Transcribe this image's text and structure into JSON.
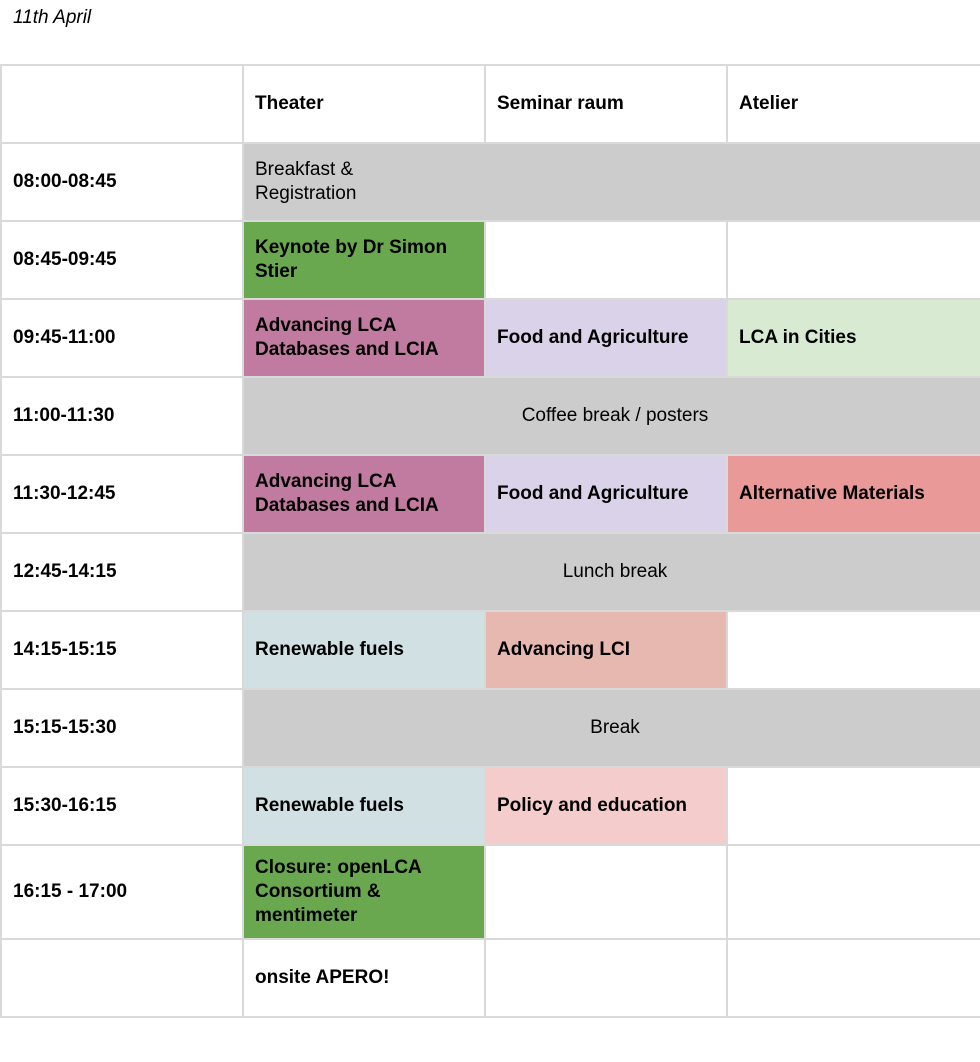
{
  "date": "11th April",
  "header": {
    "time": "",
    "rooms": [
      "Theater",
      "Seminar raum",
      "Atelier"
    ]
  },
  "rows": [
    {
      "time": "08:00-08:45",
      "cells": [
        "Breakfast & Registration"
      ]
    },
    {
      "time": "08:45-09:45",
      "cells": [
        "Keynote by Dr Simon Stier",
        "",
        ""
      ]
    },
    {
      "time": "09:45-11:00",
      "cells": [
        "Advancing LCA Databases and LCIA",
        "Food and Agriculture",
        "LCA in Cities"
      ]
    },
    {
      "time": "11:00-11:30",
      "cells": [
        "Coffee break / posters"
      ]
    },
    {
      "time": "11:30-12:45",
      "cells": [
        "Advancing LCA Databases and LCIA",
        "Food and Agriculture",
        "Alternative Materials"
      ]
    },
    {
      "time": "12:45-14:15",
      "cells": [
        "Lunch break"
      ]
    },
    {
      "time": "14:15-15:15",
      "cells": [
        "Renewable fuels",
        "Advancing LCI",
        ""
      ]
    },
    {
      "time": "15:15-15:30",
      "cells": [
        "Break"
      ]
    },
    {
      "time": "15:30-16:15",
      "cells": [
        "Renewable fuels",
        "Policy and education",
        ""
      ]
    },
    {
      "time": "16:15 - 17:00",
      "cells": [
        "Closure: openLCA Consortium & mentimeter",
        "",
        ""
      ]
    },
    {
      "time": "",
      "cells": [
        "onsite APERO!",
        "",
        ""
      ]
    }
  ],
  "colors": {
    "grey": "#cccccc",
    "green": "#6aa84f",
    "mauve": "#c27ba0",
    "lavender": "#d9d2e9",
    "mint": "#d9ead3",
    "ice": "#d0e0e3",
    "salmon": "#e6b8af",
    "red": "#ea9999",
    "pink": "#f4cccc",
    "border": "#d9d9d9"
  }
}
